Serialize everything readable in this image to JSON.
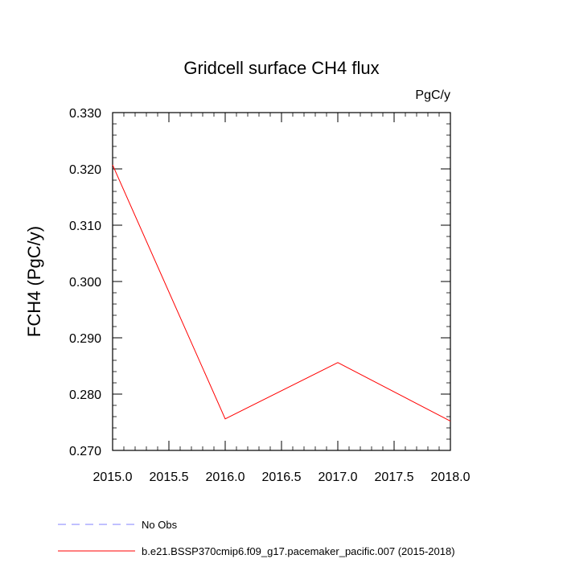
{
  "chart_data": {
    "type": "line",
    "title": "Gridcell surface CH4 flux",
    "units": "PgC/y",
    "xlabel": "",
    "ylabel": "FCH4  (PgC/y)",
    "xlim": [
      2015.0,
      2018.0
    ],
    "ylim": [
      0.27,
      0.33
    ],
    "xticks": [
      "2015.0",
      "2015.5",
      "2016.0",
      "2016.5",
      "2017.0",
      "2017.5",
      "2018.0"
    ],
    "yticks": [
      "0.270",
      "0.280",
      "0.290",
      "0.300",
      "0.310",
      "0.320",
      "0.330"
    ],
    "grid": false,
    "legend_position": "bottom",
    "series": [
      {
        "name": "No Obs",
        "color": "#8080ff",
        "style": "dashed",
        "x": [],
        "values": []
      },
      {
        "name": "b.e21.BSSP370cmip6.f09_g17.pacemaker_pacific.007 (2015-2018)",
        "color": "#ff0000",
        "style": "solid",
        "x": [
          2015,
          2016,
          2017,
          2018
        ],
        "values": [
          0.3207,
          0.2756,
          0.2856,
          0.2752
        ]
      }
    ]
  }
}
